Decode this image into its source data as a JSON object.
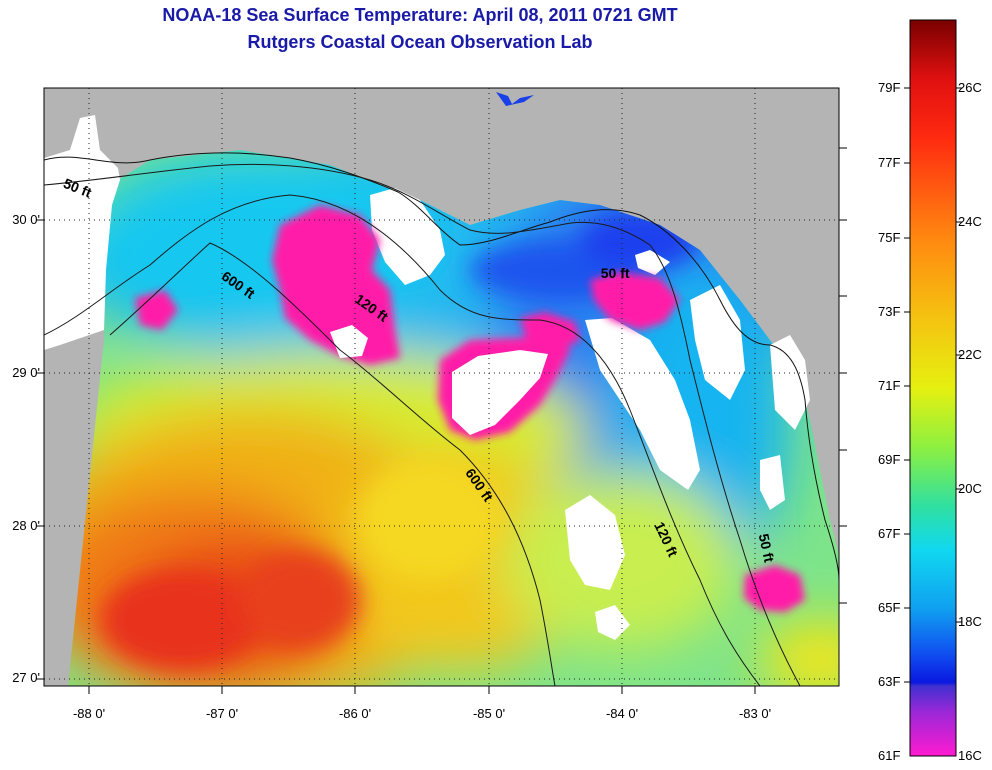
{
  "title": {
    "line1": "NOAA-18 Sea Surface Temperature:  April 08, 2011 0721 GMT",
    "line2": "Rutgers Coastal Ocean Observation Lab"
  },
  "axes": {
    "lat_labels": [
      "30 0'",
      "29 0'",
      "28 0'",
      "27 0'"
    ],
    "lon_labels": [
      "-88 0'",
      "-87 0'",
      "-86 0'",
      "-85 0'",
      "-84 0'",
      "-83 0'"
    ],
    "lat_range": [
      26.97,
      30.85
    ],
    "lon_range": [
      -88.35,
      -82.35
    ],
    "grid": "dotted"
  },
  "depth_contours": [
    "50 ft",
    "120 ft",
    "600 ft"
  ],
  "contour_labels": [
    {
      "text": "50 ft",
      "lon": -88.1,
      "lat": 30.18
    },
    {
      "text": "600 ft",
      "lon": -86.9,
      "lat": 29.55
    },
    {
      "text": "120 ft",
      "lon": -85.9,
      "lat": 29.4
    },
    {
      "text": "50 ft",
      "lon": -84.05,
      "lat": 29.62
    },
    {
      "text": "600 ft",
      "lon": -85.1,
      "lat": 28.25
    },
    {
      "text": "120 ft",
      "lon": -83.7,
      "lat": 27.9
    },
    {
      "text": "50 ft",
      "lon": -82.95,
      "lat": 27.85
    }
  ],
  "colorbar": {
    "fahrenheit_labels": [
      "79F",
      "77F",
      "75F",
      "73F",
      "71F",
      "69F",
      "67F",
      "65F",
      "63F",
      "61F"
    ],
    "celsius_labels": [
      "26C",
      "24C",
      "22C",
      "20C",
      "18C",
      "16C"
    ],
    "range_f": [
      61,
      81
    ],
    "range_c": [
      16,
      27.2
    ]
  },
  "legend_colors": {
    "land": "#b4b4b4",
    "cloud_mask": "#ffffff",
    "cold_pink": "#ff1aa8",
    "cold_blue": "#1e55ee",
    "cool_cyan": "#18c8f0",
    "mid_green": "#6ee07a",
    "warm_yellow": "#f0e618",
    "warm_orange": "#f09a14",
    "hot_red": "#e8321c",
    "title_blue": "#1a1aa8"
  }
}
